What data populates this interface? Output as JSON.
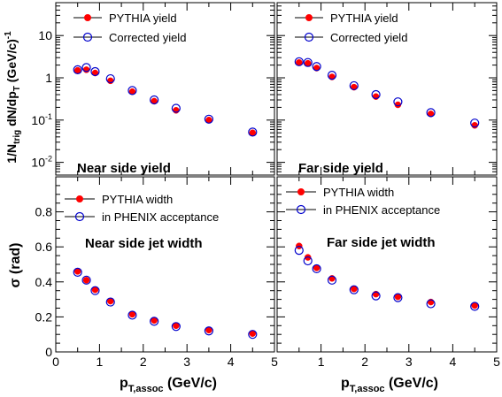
{
  "y_axis_title_top": "1/N",
  "y_axis_title_top_sub1": "trig",
  "y_axis_title_top_mid": " dN/dp",
  "y_axis_title_top_sub2": "T",
  "y_axis_title_top_unit": " (GeV/c)",
  "y_axis_title_top_sup": "-1",
  "y_axis_title_bottom": "σ (rad)",
  "x_axis_title_main": "p",
  "x_axis_title_sub": "T,assoc",
  "x_axis_title_unit": " (GeV/c)",
  "colors": {
    "pythia": "#ff0000",
    "corrected": "#0000cc",
    "frame": "#000000"
  },
  "chart_data": [
    {
      "type": "scatter",
      "panel": "top-left",
      "annotation": "Near side yield",
      "yscale": "log",
      "xlim": [
        0,
        5
      ],
      "ylim": [
        0.005,
        60
      ],
      "ytick_labels": [
        {
          "value": 10,
          "base": "10",
          "exp": ""
        },
        {
          "value": 1,
          "base": "1",
          "exp": ""
        },
        {
          "value": 0.1,
          "base": "10",
          "exp": "-1"
        },
        {
          "value": 0.01,
          "base": "10",
          "exp": "-2"
        }
      ],
      "legend": [
        "PYTHIA yield",
        "Corrected yield"
      ],
      "legend_position": "top-left",
      "series": [
        {
          "name": "PYTHIA yield",
          "x": [
            0.5,
            0.7,
            0.9,
            1.25,
            1.75,
            2.25,
            2.75,
            3.5,
            4.5
          ],
          "y": [
            1.5,
            1.55,
            1.3,
            0.85,
            0.47,
            0.28,
            0.17,
            0.1,
            0.05
          ]
        },
        {
          "name": "Corrected yield",
          "x": [
            0.5,
            0.7,
            0.9,
            1.25,
            1.75,
            2.25,
            2.75,
            3.5,
            4.5
          ],
          "y": [
            1.55,
            1.75,
            1.4,
            0.95,
            0.5,
            0.3,
            0.19,
            0.105,
            0.052
          ]
        }
      ]
    },
    {
      "type": "scatter",
      "panel": "top-right",
      "annotation": "Far side yield",
      "yscale": "log",
      "xlim": [
        0,
        5
      ],
      "ylim": [
        0.005,
        60
      ],
      "legend": [
        "PYTHIA yield",
        "Corrected yield"
      ],
      "legend_position": "top-left",
      "series": [
        {
          "name": "PYTHIA yield",
          "x": [
            0.5,
            0.7,
            0.9,
            1.25,
            1.75,
            2.25,
            2.75,
            3.5,
            4.5
          ],
          "y": [
            2.3,
            2.2,
            1.7,
            1.05,
            0.6,
            0.36,
            0.23,
            0.14,
            0.075
          ]
        },
        {
          "name": "Corrected yield",
          "x": [
            0.5,
            0.7,
            0.9,
            1.25,
            1.75,
            2.25,
            2.75,
            3.5,
            4.5
          ],
          "y": [
            2.4,
            2.3,
            1.85,
            1.15,
            0.65,
            0.4,
            0.27,
            0.15,
            0.085
          ]
        }
      ]
    },
    {
      "type": "scatter",
      "panel": "bottom-left",
      "annotation": "Near side jet width",
      "yscale": "linear",
      "xlim": [
        0,
        5
      ],
      "ylim": [
        0,
        1
      ],
      "yticks": [
        0,
        0.2,
        0.4,
        0.6,
        0.8
      ],
      "ytick_labels": [
        "0",
        "0.2",
        "0.4",
        "0.6",
        "0.8"
      ],
      "xticks": [
        0,
        1,
        2,
        3,
        4,
        5
      ],
      "xtick_labels": [
        "0",
        "1",
        "2",
        "3",
        "4",
        "5"
      ],
      "legend": [
        "PYTHIA width",
        "in PHENIX acceptance"
      ],
      "legend_position": "top-left",
      "series": [
        {
          "name": "PYTHIA width",
          "x": [
            0.5,
            0.7,
            0.9,
            1.25,
            1.75,
            2.25,
            2.75,
            3.5,
            4.5
          ],
          "y": [
            0.46,
            0.41,
            0.355,
            0.29,
            0.215,
            0.18,
            0.15,
            0.125,
            0.105
          ]
        },
        {
          "name": "in PHENIX acceptance",
          "x": [
            0.5,
            0.7,
            0.9,
            1.25,
            1.75,
            2.25,
            2.75,
            3.5,
            4.5
          ],
          "y": [
            0.455,
            0.41,
            0.35,
            0.285,
            0.21,
            0.175,
            0.145,
            0.12,
            0.1
          ]
        }
      ]
    },
    {
      "type": "scatter",
      "panel": "bottom-right",
      "annotation": "Far side jet width",
      "yscale": "linear",
      "xlim": [
        0,
        5
      ],
      "ylim": [
        0,
        1
      ],
      "xticks": [
        1,
        2,
        3,
        4,
        5
      ],
      "xtick_labels": [
        "1",
        "2",
        "3",
        "4",
        "5"
      ],
      "legend": [
        "PYTHIA width",
        "in PHENIX acceptance"
      ],
      "legend_position": "top-left",
      "series": [
        {
          "name": "PYTHIA width",
          "x": [
            0.5,
            0.7,
            0.9,
            1.25,
            1.75,
            2.25,
            2.75,
            3.5,
            4.5
          ],
          "y": [
            0.605,
            0.54,
            0.48,
            0.42,
            0.36,
            0.33,
            0.315,
            0.285,
            0.265
          ]
        },
        {
          "name": "in PHENIX acceptance",
          "x": [
            0.5,
            0.7,
            0.9,
            1.25,
            1.75,
            2.25,
            2.75,
            3.5,
            4.5
          ],
          "y": [
            0.58,
            0.52,
            0.475,
            0.41,
            0.355,
            0.32,
            0.31,
            0.275,
            0.26
          ]
        }
      ]
    }
  ]
}
